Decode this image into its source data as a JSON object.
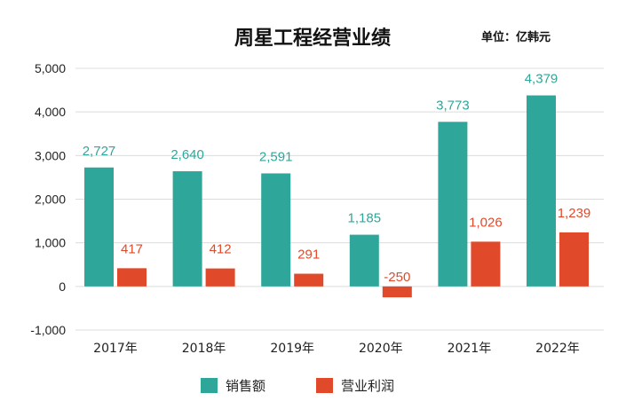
{
  "chart_data": {
    "type": "bar",
    "title": "周星工程经营业绩",
    "unit_label": "单位：亿韩元",
    "categories": [
      "2017年",
      "2018年",
      "2019年",
      "2020年",
      "2021年",
      "2022年"
    ],
    "series": [
      {
        "name": "销售额",
        "color": "#2ea79a",
        "values": [
          2727,
          2640,
          2591,
          1185,
          3773,
          4379
        ],
        "labels": [
          "2,727",
          "2,640",
          "2,591",
          "1,185",
          "3,773",
          "4,379"
        ]
      },
      {
        "name": "营业利润",
        "color": "#e04a2a",
        "values": [
          417,
          412,
          291,
          -250,
          1026,
          1239
        ],
        "labels": [
          "417",
          "412",
          "291",
          "-250",
          "1,026",
          "1,239"
        ]
      }
    ],
    "ylim": [
      -1000,
      5000
    ],
    "yticks": [
      -1000,
      0,
      1000,
      2000,
      3000,
      4000,
      5000
    ],
    "ytick_labels": [
      "-1,000",
      "0",
      "1,000",
      "2,000",
      "3,000",
      "4,000",
      "5,000"
    ],
    "grid": true,
    "legend_position": "bottom-center"
  }
}
